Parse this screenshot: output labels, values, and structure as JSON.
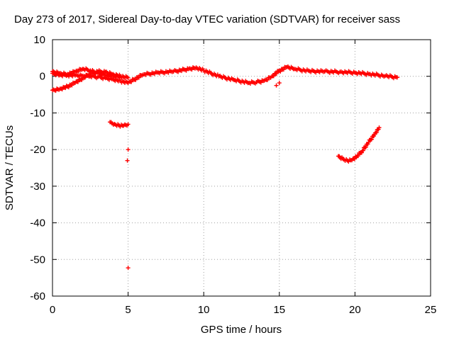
{
  "chart_data": {
    "type": "scatter",
    "title": "Day 273 of 2017, Sidereal Day-to-day VTEC variation (SDTVAR) for receiver sass",
    "xlabel": "GPS time / hours",
    "ylabel": "SDTVAR / TECUs",
    "xlim": [
      0,
      25
    ],
    "ylim": [
      -60,
      10
    ],
    "x_ticks": [
      0,
      5,
      10,
      15,
      20,
      25
    ],
    "y_ticks": [
      10,
      0,
      -10,
      -20,
      -30,
      -40,
      -50,
      -60
    ],
    "grid": true,
    "marker": "+",
    "color": "#ff0000",
    "series": [
      {
        "name": "main-band-lower",
        "x": [
          0,
          0.5,
          1,
          1.5,
          2,
          2.5,
          3,
          3.5,
          4,
          4.5,
          5
        ],
        "y": [
          -3.8,
          -3.4,
          -2.8,
          -1.8,
          -0.5,
          0.7,
          1.3,
          1.2,
          0.6,
          0,
          -0.4
        ]
      },
      {
        "name": "main-band-mid",
        "x": [
          0,
          0.5,
          1,
          1.5,
          2,
          2.5,
          3,
          3.5,
          4,
          4.5,
          5,
          6,
          7,
          8,
          9,
          9.5,
          10,
          11,
          12,
          13,
          13.5,
          14,
          14.5,
          15,
          15.5,
          16,
          17,
          18,
          19,
          20,
          21,
          22,
          22.8
        ],
        "y": [
          0.8,
          0.4,
          0.3,
          0.2,
          0.1,
          0,
          -0.2,
          -0.5,
          -0.8,
          -1.3,
          -1.8,
          0.5,
          1,
          1.3,
          2,
          2.4,
          1.6,
          0,
          -1,
          -1.8,
          -1.6,
          -1.2,
          0,
          1.5,
          2.5,
          2,
          1.4,
          1.3,
          1.2,
          1.0,
          0.6,
          0.1,
          -0.3
        ]
      },
      {
        "name": "main-band-upper",
        "x": [
          0,
          0.5,
          1,
          1.5,
          2,
          2.5,
          3,
          3.5,
          4,
          4.5
        ],
        "y": [
          1.3,
          0.9,
          0.6,
          1.2,
          2.0,
          1.6,
          0.8,
          0.3,
          0.1,
          0
        ]
      },
      {
        "name": "arc-near-5h",
        "x": [
          3.8,
          4.1,
          4.4,
          4.7,
          5.0
        ],
        "y": [
          -12.5,
          -13.0,
          -13.4,
          -13.5,
          -13.1
        ]
      },
      {
        "name": "isolated-points",
        "x": [
          5.0,
          4.95,
          5.0,
          14.8,
          15.0
        ],
        "y": [
          -20,
          -23,
          -52.3,
          -2.5,
          -1.8
        ]
      },
      {
        "name": "arc-near-20h",
        "x": [
          18.9,
          19.2,
          19.5,
          19.8,
          20.1,
          20.5,
          20.9,
          21.3,
          21.6
        ],
        "y": [
          -21.8,
          -22.5,
          -23.0,
          -22.9,
          -22.0,
          -20.3,
          -18.0,
          -15.8,
          -14.0
        ]
      }
    ]
  }
}
